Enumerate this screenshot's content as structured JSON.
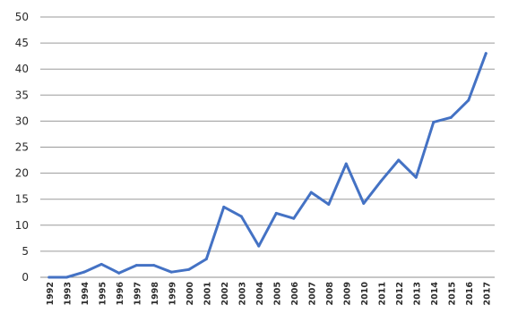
{
  "chart_data": {
    "type": "line",
    "title": "",
    "xlabel": "",
    "ylabel": "",
    "x": [
      "1992",
      "1993",
      "1994",
      "1995",
      "1996",
      "1997",
      "1998",
      "1999",
      "2000",
      "2001",
      "2002",
      "2003",
      "2004",
      "2005",
      "2006",
      "2007",
      "2008",
      "2009",
      "2010",
      "2011",
      "2012",
      "2013",
      "2014",
      "2015",
      "2016",
      "2017"
    ],
    "series": [
      {
        "values": [
          0,
          0,
          1,
          2.5,
          0.8,
          2.3,
          2.3,
          1,
          1.5,
          3.5,
          13.5,
          11.7,
          6,
          12.3,
          11.3,
          16.3,
          14,
          21.8,
          14.2,
          18.5,
          22.5,
          19.2,
          29.8,
          30.7,
          34,
          43
        ],
        "color": "#4472c4"
      }
    ],
    "ylim": [
      0,
      50
    ],
    "yticks": [
      "0",
      "5",
      "10",
      "15",
      "20",
      "25",
      "30",
      "35",
      "40",
      "45",
      "50"
    ],
    "grid": true,
    "legend": "none"
  }
}
